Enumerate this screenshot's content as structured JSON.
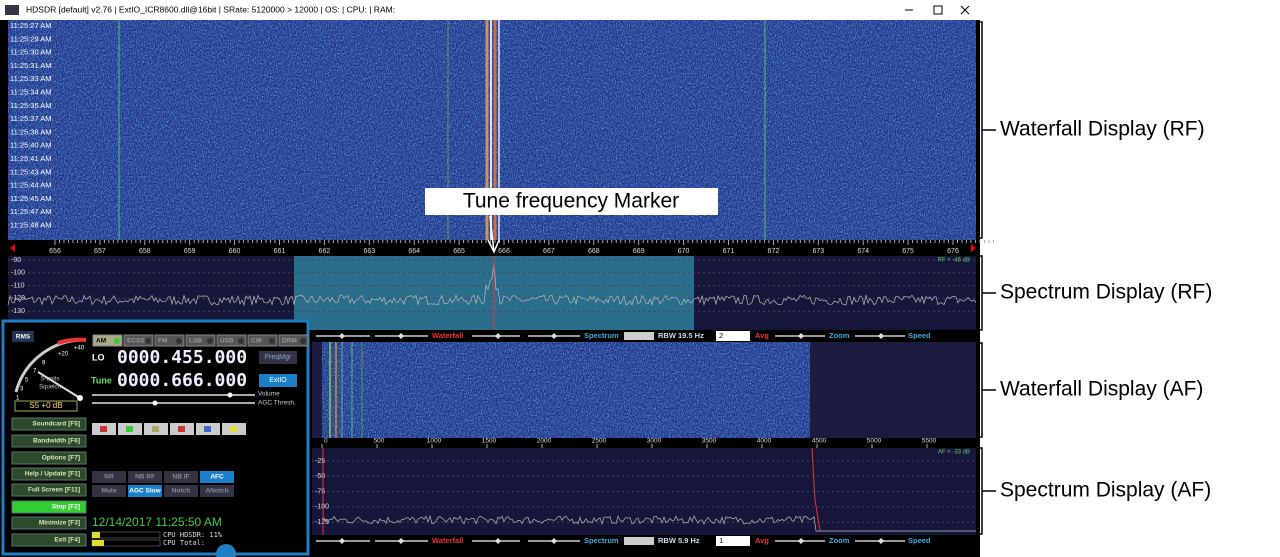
{
  "window": {
    "title": "HDSDR [default] v2.76 | ExtIO_ICR8600.dll@16bit | SRate: 5120000 > 12000 | OS: | CPU: | RAM:"
  },
  "waterfall_rf": {
    "timestamps": [
      "11:25:27 AM",
      "11:25:29 AM",
      "11:25:30 AM",
      "11:25:31 AM",
      "11:25:33 AM",
      "11:25:34 AM",
      "11:25:35 AM",
      "11:25:37 AM",
      "11:25:38 AM",
      "11:25:40 AM",
      "11:25:41 AM",
      "11:25:43 AM",
      "11:25:44 AM",
      "11:25:45 AM",
      "11:25:47 AM",
      "11:25:48 AM"
    ]
  },
  "rf_axis": {
    "labels": [
      "656",
      "657",
      "658",
      "659",
      "660",
      "661",
      "662",
      "663",
      "664",
      "665",
      "666",
      "667",
      "668",
      "669",
      "670",
      "671",
      "672",
      "673",
      "674",
      "675",
      "676"
    ]
  },
  "spectrum_rf": {
    "levels": [
      "-90",
      "-100",
      "-110",
      "-120",
      "-130"
    ],
    "indicator": "RF < -46 dB"
  },
  "control_bar_rf": {
    "waterfall": "Waterfall",
    "spectrum": "Spectrum",
    "rbw": "RBW 19.5 Hz",
    "avg_count": "2",
    "avg": "Avg",
    "zoom": "Zoom",
    "speed": "Speed"
  },
  "af_axis": {
    "labels": [
      "0",
      "500",
      "1000",
      "1500",
      "2000",
      "2500",
      "3000",
      "3500",
      "4000",
      "4500",
      "5000",
      "5500"
    ]
  },
  "spectrum_af": {
    "levels": [
      "-25",
      "-50",
      "-75",
      "-100",
      "-125"
    ],
    "indicator": "AF < -33 dB"
  },
  "control_bar_af": {
    "waterfall": "Waterfall",
    "spectrum": "Spectrum",
    "rbw": "RBW  5.9 Hz",
    "avg_count": "1",
    "avg": "Avg",
    "zoom": "Zoom",
    "speed": "Speed"
  },
  "panel": {
    "rms": "RMS",
    "smeter": "S5 +0 dB",
    "scale": [
      "+40",
      "+20",
      "9",
      "7",
      "5",
      "3",
      "1"
    ],
    "squelch": [
      "S-units",
      "Squelch"
    ],
    "modes": [
      "AM",
      "ECSS",
      "FM",
      "LSB",
      "USB",
      "CW",
      "DRM"
    ],
    "lo_label": "LO",
    "lo": "0000.455.000",
    "tune_label": "Tune",
    "tune": "0000.666.000",
    "freqmgr": "FreqMgr",
    "extio": "ExtIO",
    "volume": "Volume",
    "agc": "AGC Thresh.",
    "buttons": [
      "Soundcard [F5]",
      "Bandwidth [F6]",
      "Options [F7]",
      "Help / Update [F1]",
      "Full Screen [F11]",
      "Stop [F2]",
      "Minimize [F3]",
      "Exit [F4]"
    ],
    "dsp": [
      "NR",
      "NB RF",
      "NB IF",
      "AFC",
      "Mute",
      "AGC Slow",
      "Notch",
      "ANotch"
    ],
    "datetime": "12/14/2017 11:25:50 AM",
    "cpu": [
      "CPU HDSDR: 11%",
      "CPU Total:"
    ]
  },
  "annotations": {
    "marker": "Tune frequency Marker",
    "labels": [
      "Waterfall Display (RF)",
      "Spectrum Display (RF)",
      "Waterfall Display (AF)",
      "Spectrum Display (AF)"
    ]
  }
}
